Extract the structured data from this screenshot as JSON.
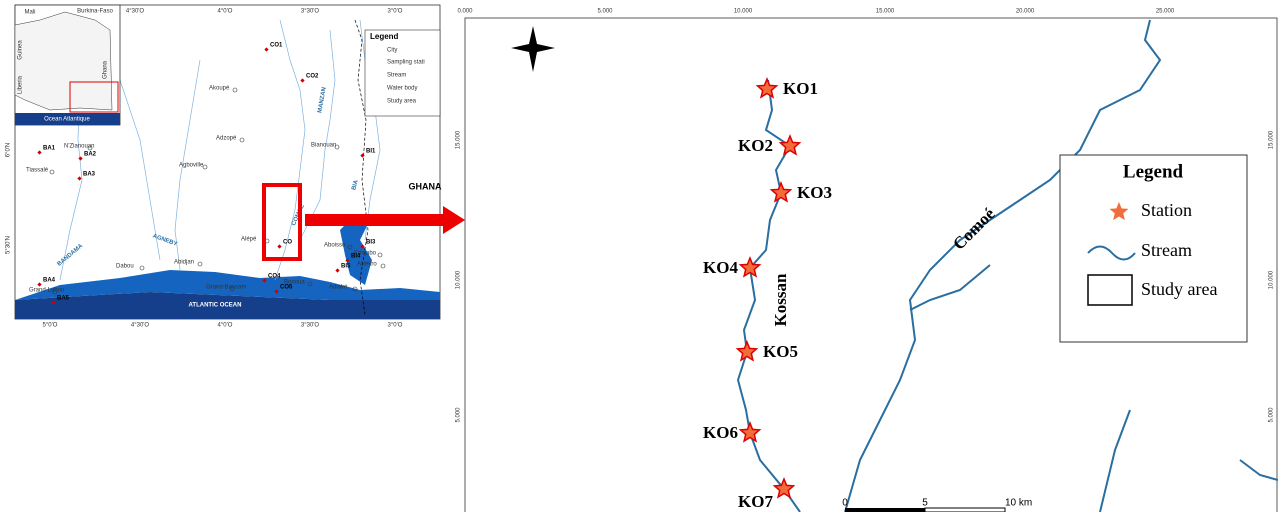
{
  "inset_map": {
    "countries": [
      "Mali",
      "Burkina-Faso",
      "Guinea",
      "Liberia",
      "Ghana"
    ],
    "ocean": "Ocean Atlantique"
  },
  "location_map": {
    "top_coords": [
      "4°30'O",
      "4°0'O",
      "3°30'O",
      "3°0'O"
    ],
    "bottom_coords": [
      "5°0'O",
      "4°30'O",
      "4°0'O",
      "3°30'O",
      "3°0'O"
    ],
    "left_coords": [
      "6°0'N",
      "5°30'N"
    ],
    "places": [
      "Akoupé",
      "Adzopé",
      "Agboville",
      "N'Zianouan",
      "Tiassalé",
      "Bianouan",
      "Aboisso",
      "Krinjabo",
      "Alliékro",
      "Alépé",
      "Bonoua",
      "Grand-Bassam",
      "Adiaké",
      "Abidjan",
      "Dabou",
      "Grand-Lahou"
    ],
    "stations": [
      "CO1",
      "CO2",
      "BA1",
      "BA2",
      "BA3",
      "BI1",
      "BI3",
      "BI4",
      "BI5",
      "CO",
      "CO4",
      "CO5",
      "BA4",
      "BA5"
    ],
    "rivers": [
      "MANZAN",
      "BIA",
      "COMOE",
      "AGNEBY",
      "BANDAMA"
    ],
    "country": "GHANA",
    "ocean": "ATLANTIC OCEAN",
    "legend": {
      "title": "Legend",
      "items": [
        "City",
        "Sampling stati",
        "Stream",
        "Water body",
        "Study area"
      ]
    }
  },
  "study_area_map": {
    "top_coords": [
      "0.000",
      "5.000",
      "10.000",
      "15.000",
      "20.000",
      "25.000"
    ],
    "left_coords": [
      "15.000",
      "10.000",
      "5.000"
    ],
    "right_coords": [
      "15.000",
      "10.000",
      "5.000"
    ],
    "stations": [
      "KO1",
      "KO2",
      "KO3",
      "KO4",
      "KO5",
      "KO6",
      "KO7"
    ],
    "rivers": [
      "Kossan",
      "Comoé"
    ],
    "legend": {
      "title": "Legend",
      "items": [
        "Station",
        "Stream",
        "Study area"
      ]
    },
    "scale": [
      "0",
      "5",
      "10 km"
    ]
  }
}
